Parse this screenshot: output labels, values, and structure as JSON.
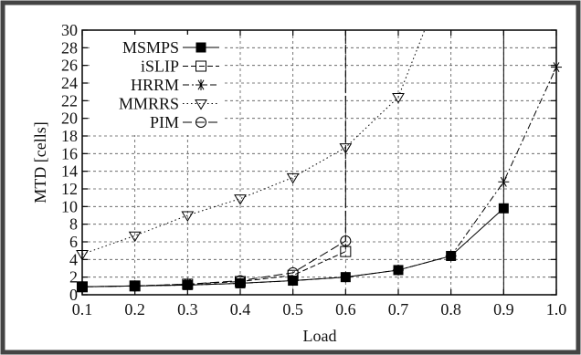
{
  "chart_data": {
    "type": "line",
    "xlabel": "Load",
    "ylabel": "MTD [cells]",
    "xlim": [
      0.1,
      1.0
    ],
    "ylim": [
      0,
      30
    ],
    "grid": true,
    "legend_position": "top-left",
    "x_ticks": [
      "0.1",
      "0.2",
      "0.3",
      "0.4",
      "0.5",
      "0.6",
      "0.7",
      "0.8",
      "0.9",
      "1.0"
    ],
    "y_ticks": [
      "0",
      "2",
      "4",
      "6",
      "8",
      "10",
      "12",
      "14",
      "16",
      "18",
      "20",
      "22",
      "24",
      "26",
      "28",
      "30"
    ],
    "series": [
      {
        "name": "MSMPS",
        "marker": "filled-square",
        "dash": "solid",
        "x": [
          0.1,
          0.2,
          0.3,
          0.4,
          0.5,
          0.6,
          0.7,
          0.8,
          0.9
        ],
        "y": [
          0.9,
          1.0,
          1.1,
          1.3,
          1.6,
          2.0,
          2.8,
          4.4,
          9.8
        ]
      },
      {
        "name": "iSLIP",
        "marker": "open-square",
        "dash": "dashed",
        "x": [
          0.1,
          0.2,
          0.3,
          0.4,
          0.5,
          0.6
        ],
        "y": [
          0.9,
          1.0,
          1.2,
          1.5,
          2.2,
          4.9
        ],
        "vertical_to_top_at": 0.6
      },
      {
        "name": "HRRM",
        "marker": "asterisk",
        "dash": "dashdot",
        "x": [
          0.1,
          0.2,
          0.3,
          0.4,
          0.5,
          0.6,
          0.7,
          0.8,
          0.9,
          1.0
        ],
        "y": [
          0.9,
          1.0,
          1.1,
          1.3,
          1.6,
          2.0,
          2.8,
          4.4,
          12.8,
          25.8
        ]
      },
      {
        "name": "MMRRS",
        "marker": "open-triangle-down",
        "dash": "dotted",
        "x": [
          0.1,
          0.2,
          0.3,
          0.4,
          0.5,
          0.6,
          0.7,
          0.75
        ],
        "y": [
          4.6,
          6.7,
          9.0,
          10.9,
          13.3,
          16.7,
          22.4,
          30.0
        ]
      },
      {
        "name": "PIM",
        "marker": "open-circle",
        "dash": "longdash",
        "x": [
          0.1,
          0.2,
          0.3,
          0.4,
          0.5,
          0.6
        ],
        "y": [
          0.9,
          1.0,
          1.2,
          1.6,
          2.5,
          6.1
        ],
        "vertical_to_top_at": 0.6
      }
    ],
    "annotations": [
      {
        "type": "vertical-line",
        "x": 0.9
      }
    ]
  }
}
